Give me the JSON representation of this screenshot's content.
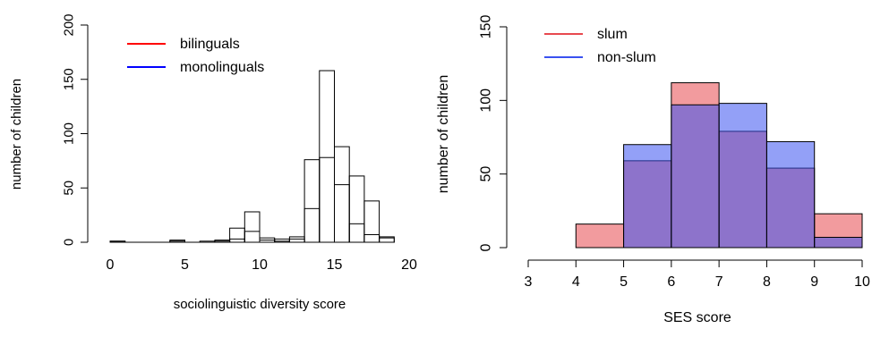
{
  "chart_data": [
    {
      "type": "bar",
      "title": "",
      "xlabel": "sociolinguistic diversity score",
      "ylabel": "number of children",
      "xlim": [
        0,
        20
      ],
      "ylim": [
        0,
        200
      ],
      "xticks": [
        "0",
        "5",
        "10",
        "15",
        "20"
      ],
      "yticks": [
        "0",
        "50",
        "100",
        "150",
        "200"
      ],
      "legend_position": "top-left",
      "bin_width": 1,
      "bins": [
        0,
        1,
        2,
        3,
        4,
        5,
        6,
        7,
        8,
        9,
        10,
        11,
        12,
        13,
        14,
        15,
        16,
        17,
        18
      ],
      "series": [
        {
          "name": "bilinguals",
          "color": "#ff0000",
          "values": [
            1,
            0,
            0,
            0,
            1,
            0,
            0,
            1,
            3,
            10,
            2,
            1,
            3,
            31,
            78,
            53,
            17,
            7,
            4
          ]
        },
        {
          "name": "monolinguals",
          "color": "#0000ff",
          "values": [
            1,
            0,
            0,
            0,
            2,
            0,
            1,
            2,
            13,
            28,
            4,
            3,
            5,
            76,
            158,
            88,
            61,
            38,
            5
          ]
        }
      ]
    },
    {
      "type": "bar",
      "title": "",
      "xlabel": "SES score",
      "ylabel": "number of children",
      "xlim": [
        3,
        10
      ],
      "ylim": [
        0,
        150
      ],
      "xticks": [
        "3",
        "4",
        "5",
        "6",
        "7",
        "8",
        "9",
        "10"
      ],
      "yticks": [
        "0",
        "50",
        "100",
        "150"
      ],
      "legend_position": "top-left",
      "bin_width": 1,
      "bins": [
        4,
        5,
        6,
        7,
        8,
        9
      ],
      "series": [
        {
          "name": "slum",
          "color": "#e8494f",
          "values": [
            16,
            59,
            112,
            79,
            54,
            23
          ]
        },
        {
          "name": "non-slum",
          "color": "#3a52f0",
          "values": [
            0,
            70,
            97,
            98,
            72,
            7
          ]
        }
      ]
    }
  ]
}
